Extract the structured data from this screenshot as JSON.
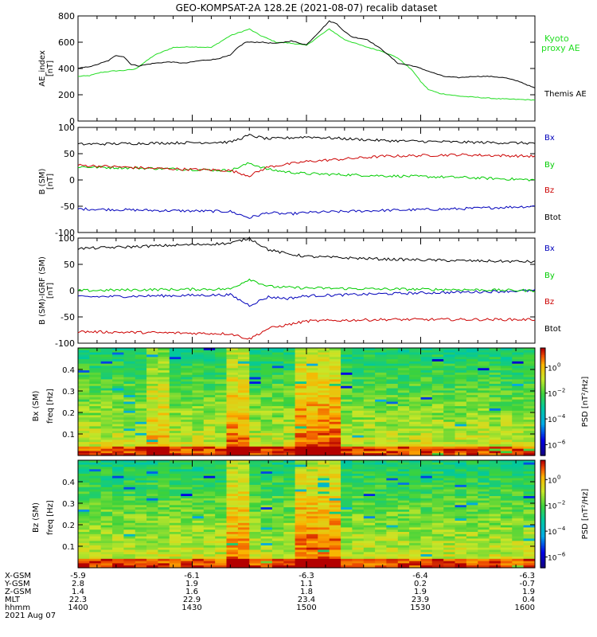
{
  "title": "GEO-KOMPSAT-2A 128.2E (2021-08-07) recalib dataset",
  "colors": {
    "black": "#000000",
    "green": "#00cc00",
    "red": "#cc0000",
    "blue": "#0000bb",
    "kyoto_green": "#22dd22"
  },
  "chart_data": [
    {
      "type": "line",
      "panel": "ae",
      "ylabel": "AE_index [nT]",
      "ylim": [
        0,
        800
      ],
      "yticks": [
        0,
        200,
        400,
        600,
        800
      ],
      "x_range_hhmm": [
        "1400",
        "1600"
      ],
      "series": [
        {
          "name": "Kyoto proxy AE",
          "color": "#22dd22",
          "x": [
            0,
            3,
            6,
            9,
            12,
            15,
            20,
            25,
            30,
            35,
            40,
            45,
            48,
            52,
            55,
            58,
            60,
            63,
            66,
            70,
            75,
            80,
            84,
            88,
            90,
            92,
            95,
            100,
            105,
            110,
            115,
            120
          ],
          "y": [
            340,
            345,
            370,
            380,
            385,
            395,
            500,
            560,
            565,
            560,
            650,
            700,
            650,
            600,
            595,
            585,
            575,
            640,
            700,
            620,
            570,
            530,
            480,
            380,
            300,
            240,
            210,
            190,
            180,
            170,
            165,
            160
          ]
        },
        {
          "name": "Themis AE",
          "color": "#000000",
          "x": [
            0,
            4,
            8,
            10,
            12,
            14,
            16,
            20,
            24,
            28,
            32,
            36,
            40,
            42,
            44,
            48,
            52,
            56,
            60,
            62,
            64,
            66,
            68,
            70,
            72,
            76,
            80,
            84,
            88,
            92,
            96,
            100,
            104,
            108,
            112,
            116,
            120
          ],
          "y": [
            400,
            420,
            460,
            500,
            490,
            430,
            420,
            440,
            450,
            440,
            460,
            470,
            500,
            560,
            600,
            600,
            590,
            610,
            580,
            640,
            700,
            760,
            740,
            680,
            640,
            620,
            540,
            440,
            420,
            380,
            340,
            330,
            340,
            340,
            330,
            300,
            250
          ]
        }
      ]
    },
    {
      "type": "line",
      "panel": "b_sm",
      "ylabel": "B (SM) [nT]",
      "ylim": [
        -100,
        100
      ],
      "yticks": [
        -100,
        -50,
        0,
        50,
        100
      ],
      "series": [
        {
          "name": "Bx",
          "color": "#0000bb",
          "x": [
            0,
            20,
            40,
            45,
            50,
            55,
            60,
            80,
            100,
            120
          ],
          "y": [
            -55,
            -58,
            -60,
            -72,
            -62,
            -65,
            -62,
            -58,
            -55,
            -50
          ]
        },
        {
          "name": "By",
          "color": "#00cc00",
          "x": [
            0,
            20,
            40,
            45,
            50,
            55,
            60,
            80,
            100,
            120
          ],
          "y": [
            25,
            22,
            18,
            32,
            20,
            15,
            12,
            8,
            5,
            0
          ]
        },
        {
          "name": "Bz",
          "color": "#cc0000",
          "x": [
            0,
            20,
            40,
            45,
            50,
            55,
            60,
            80,
            100,
            120
          ],
          "y": [
            28,
            22,
            18,
            8,
            25,
            30,
            35,
            45,
            48,
            45
          ]
        },
        {
          "name": "Btot",
          "color": "#000000",
          "x": [
            0,
            20,
            40,
            45,
            50,
            55,
            60,
            80,
            100,
            120
          ],
          "y": [
            68,
            70,
            72,
            85,
            78,
            80,
            82,
            75,
            72,
            70
          ]
        }
      ]
    },
    {
      "type": "line",
      "panel": "b_sm_igrf",
      "ylabel": "B (SM)-IGRF (SM) [nT]",
      "ylim": [
        -100,
        100
      ],
      "yticks": [
        -100,
        -50,
        0,
        50,
        100
      ],
      "series": [
        {
          "name": "Bx",
          "color": "#0000bb",
          "x": [
            0,
            20,
            40,
            45,
            50,
            55,
            60,
            80,
            100,
            120
          ],
          "y": [
            -12,
            -10,
            -8,
            -28,
            -12,
            -15,
            -10,
            -6,
            -3,
            0
          ]
        },
        {
          "name": "By",
          "color": "#00cc00",
          "x": [
            0,
            20,
            40,
            45,
            50,
            55,
            60,
            80,
            100,
            120
          ],
          "y": [
            0,
            2,
            3,
            22,
            8,
            6,
            5,
            3,
            2,
            0
          ]
        },
        {
          "name": "Bz",
          "color": "#cc0000",
          "x": [
            0,
            20,
            40,
            45,
            50,
            55,
            60,
            80,
            100,
            120
          ],
          "y": [
            -78,
            -80,
            -82,
            -92,
            -72,
            -65,
            -58,
            -55,
            -55,
            -55
          ]
        },
        {
          "name": "Btot",
          "color": "#000000",
          "x": [
            0,
            20,
            40,
            45,
            50,
            55,
            60,
            80,
            100,
            120
          ],
          "y": [
            80,
            85,
            90,
            100,
            78,
            70,
            65,
            60,
            57,
            55
          ]
        }
      ]
    },
    {
      "type": "heatmap",
      "panel": "bx_spec",
      "ylabel": "Bx (SM) freq [Hz]",
      "yticks": [
        0.1,
        0.2,
        0.3,
        0.4
      ],
      "ylim": [
        0,
        0.5
      ],
      "colorbar_label": "PSD [nT^2/Hz]",
      "colorbar_ticks": [
        "10^0",
        "10^-2",
        "10^-4",
        "10^-6"
      ]
    },
    {
      "type": "heatmap",
      "panel": "bz_spec",
      "ylabel": "Bz (SM) freq [Hz]",
      "yticks": [
        0.1,
        0.2,
        0.3,
        0.4
      ],
      "ylim": [
        0,
        0.5
      ],
      "colorbar_label": "PSD [nT^2/Hz]",
      "colorbar_ticks": [
        "10^0",
        "10^-2",
        "10^-4",
        "10^-6"
      ]
    }
  ],
  "legend_ae": {
    "kyoto1": "Kyoto",
    "kyoto2": "proxy AE",
    "themis": "Themis AE"
  },
  "legend_b": {
    "bx": "Bx",
    "by": "By",
    "bz": "Bz",
    "btot": "Btot"
  },
  "psd_label": "PSD [nT²/Hz]",
  "ephemeris": {
    "labels": [
      "X-GSM",
      "Y-GSM",
      "Z-GSM",
      "MLT",
      "hhmm",
      "2021 Aug 07"
    ],
    "columns": [
      [
        "-5.9",
        "2.8",
        "1.4",
        "22.3",
        "1400"
      ],
      [
        "-6.1",
        "1.9",
        "1.6",
        "22.9",
        "1430"
      ],
      [
        "-6.3",
        "1.1",
        "1.8",
        "23.4",
        "1500"
      ],
      [
        "-6.4",
        "0.2",
        "1.9",
        "23.9",
        "1530"
      ],
      [
        "-6.3",
        "-0.7",
        "1.9",
        "0.4",
        "1600"
      ]
    ]
  }
}
